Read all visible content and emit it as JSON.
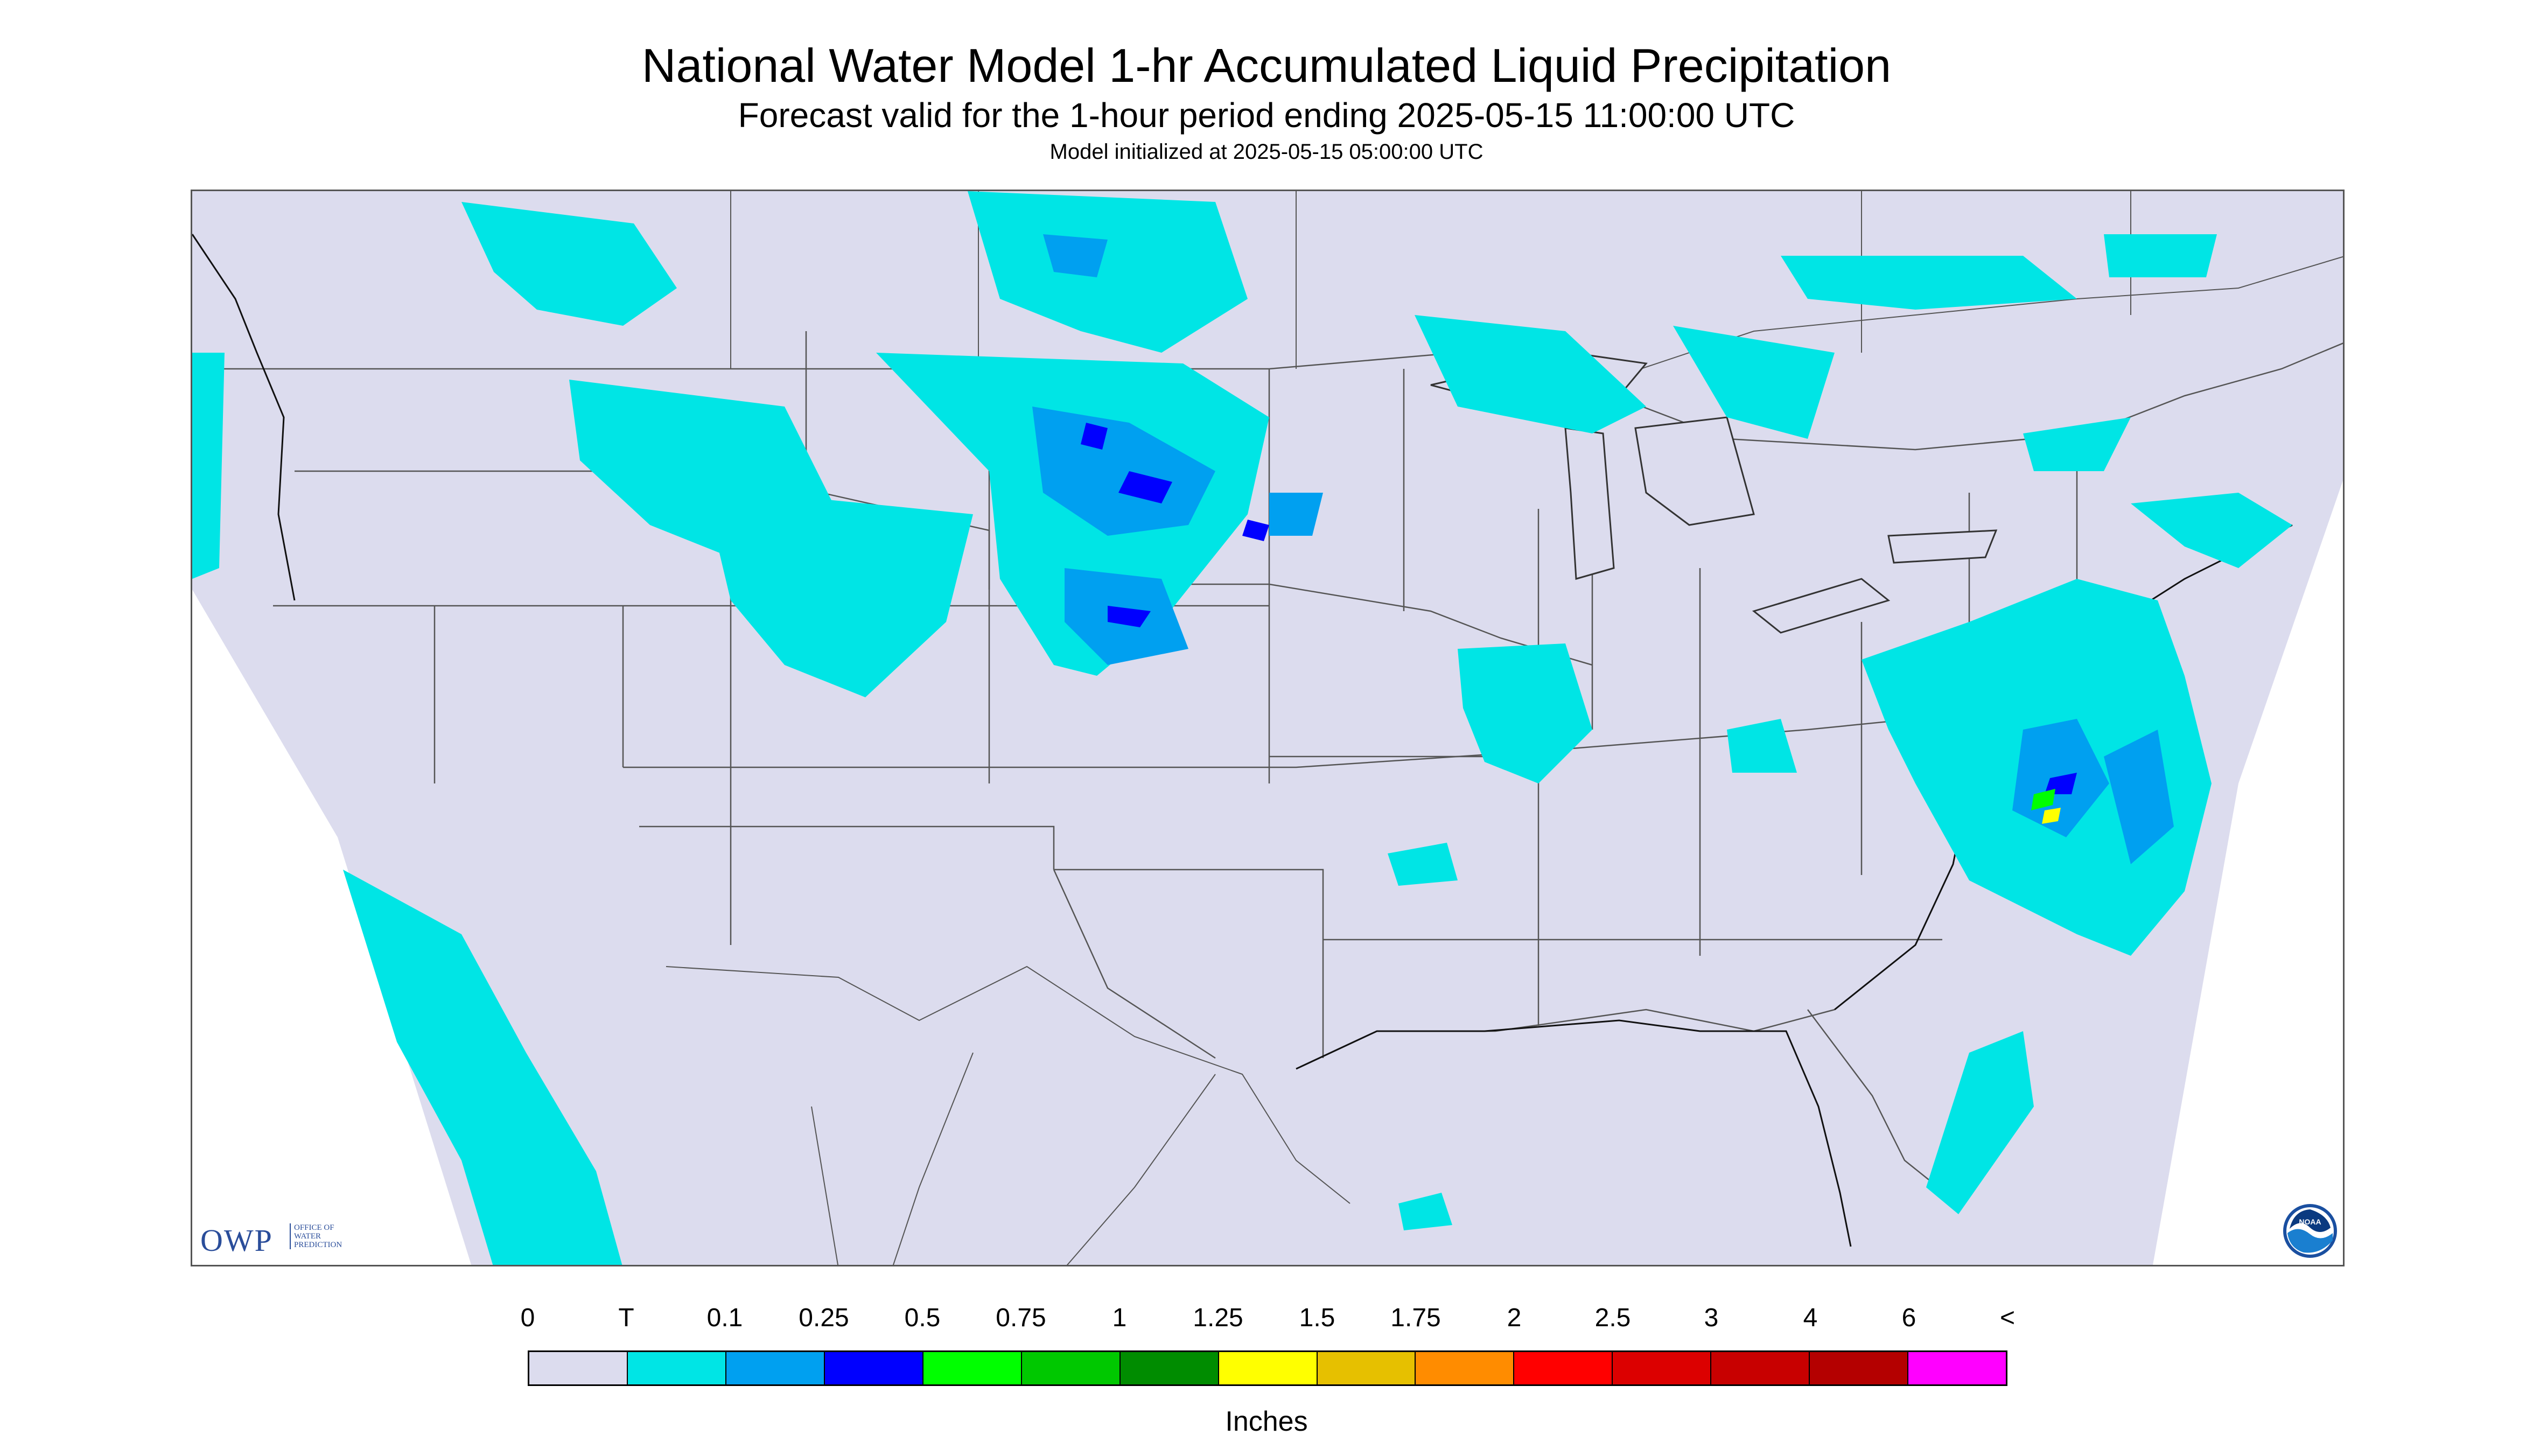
{
  "header": {
    "title": "National Water Model 1-hr Accumulated Liquid Precipitation",
    "subtitle": "Forecast valid for the 1-hour period ending 2025-05-15 11:00:00 UTC",
    "init": "Model initialized at 2025-05-15 05:00:00 UTC"
  },
  "logos": {
    "owp_main": "OWP",
    "owp_sub": [
      "OFFICE OF",
      "WATER",
      "PREDICTION"
    ],
    "noaa": "NOAA"
  },
  "legend": {
    "units": "Inches",
    "labels": [
      "0",
      "T",
      "0.1",
      "0.25",
      "0.5",
      "0.75",
      "1",
      "1.25",
      "1.5",
      "1.75",
      "2",
      "2.5",
      "3",
      "4",
      "6",
      "<"
    ],
    "colors": [
      "#dcdcee",
      "#00e5e5",
      "#00a0f0",
      "#0000ff",
      "#00ff00",
      "#00c800",
      "#008c00",
      "#ffff00",
      "#e6c000",
      "#ff8c00",
      "#ff0000",
      "#dc0000",
      "#c80000",
      "#b40000",
      "#ff00ff",
      "#9955cc"
    ]
  },
  "map": {
    "background_color": "#dcdcee",
    "outside_color": "#ffffff",
    "precip_colors": {
      "trace": "#00e5e5",
      "light": "#00a0f0",
      "moderate": "#0000ff",
      "heavy": "#00ff00",
      "heavier": "#ffff00"
    }
  }
}
